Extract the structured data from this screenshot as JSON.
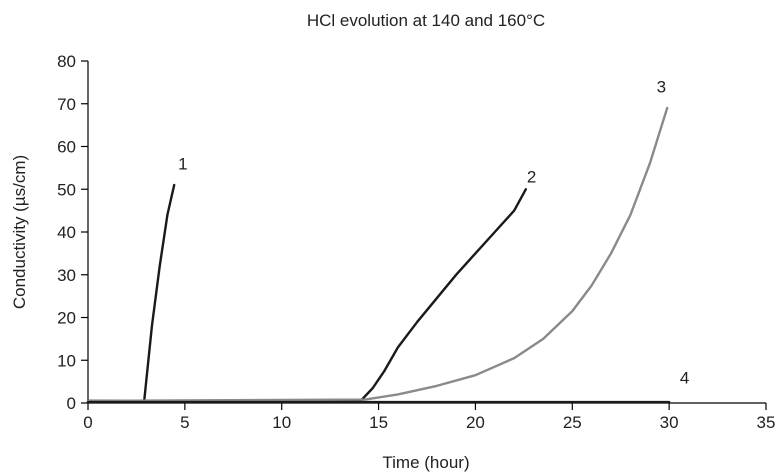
{
  "chart_data": {
    "type": "line",
    "title": "HCl evolution at 140 and 160°C",
    "xlabel": "Time (hour)",
    "ylabel": "Conductivity (µs/cm)",
    "xlim": [
      0,
      35
    ],
    "ylim": [
      0,
      80
    ],
    "xticks": [
      0,
      5,
      10,
      15,
      20,
      25,
      30,
      35
    ],
    "yticks": [
      0,
      10,
      20,
      30,
      40,
      50,
      60,
      70,
      80
    ],
    "grid": false,
    "legend": "none",
    "series": [
      {
        "name": "1",
        "color": "#1a1a1a",
        "points": [
          [
            0,
            0.5
          ],
          [
            2.9,
            0.5
          ],
          [
            3.3,
            18
          ],
          [
            3.7,
            32
          ],
          [
            4.1,
            44
          ],
          [
            4.45,
            51
          ]
        ]
      },
      {
        "name": "2",
        "color": "#1a1a1a",
        "points": [
          [
            0,
            0.5
          ],
          [
            14.1,
            0.6
          ],
          [
            14.7,
            3.5
          ],
          [
            15.3,
            7.5
          ],
          [
            16,
            13
          ],
          [
            17,
            19
          ],
          [
            18,
            24.5
          ],
          [
            19,
            30
          ],
          [
            20,
            35
          ],
          [
            21,
            40
          ],
          [
            22,
            45
          ],
          [
            22.6,
            50
          ]
        ]
      },
      {
        "name": "3",
        "color": "#8a8a8a",
        "points": [
          [
            0,
            0.5
          ],
          [
            14.3,
            0.8
          ],
          [
            16,
            2
          ],
          [
            18,
            4
          ],
          [
            20,
            6.5
          ],
          [
            22,
            10.5
          ],
          [
            23.5,
            15
          ],
          [
            25,
            21.5
          ],
          [
            26,
            27.5
          ],
          [
            27,
            35
          ],
          [
            28,
            44
          ],
          [
            29,
            56
          ],
          [
            29.9,
            69
          ]
        ]
      },
      {
        "name": "4",
        "color": "#1a1a1a",
        "points": [
          [
            0,
            0.2
          ],
          [
            30,
            0.2
          ]
        ]
      }
    ],
    "series_labels": [
      {
        "text": "1",
        "x": 4.9,
        "y": 56
      },
      {
        "text": "2",
        "x": 22.9,
        "y": 53
      },
      {
        "text": "3",
        "x": 29.6,
        "y": 74
      },
      {
        "text": "4",
        "x": 30.8,
        "y": 6
      }
    ]
  }
}
